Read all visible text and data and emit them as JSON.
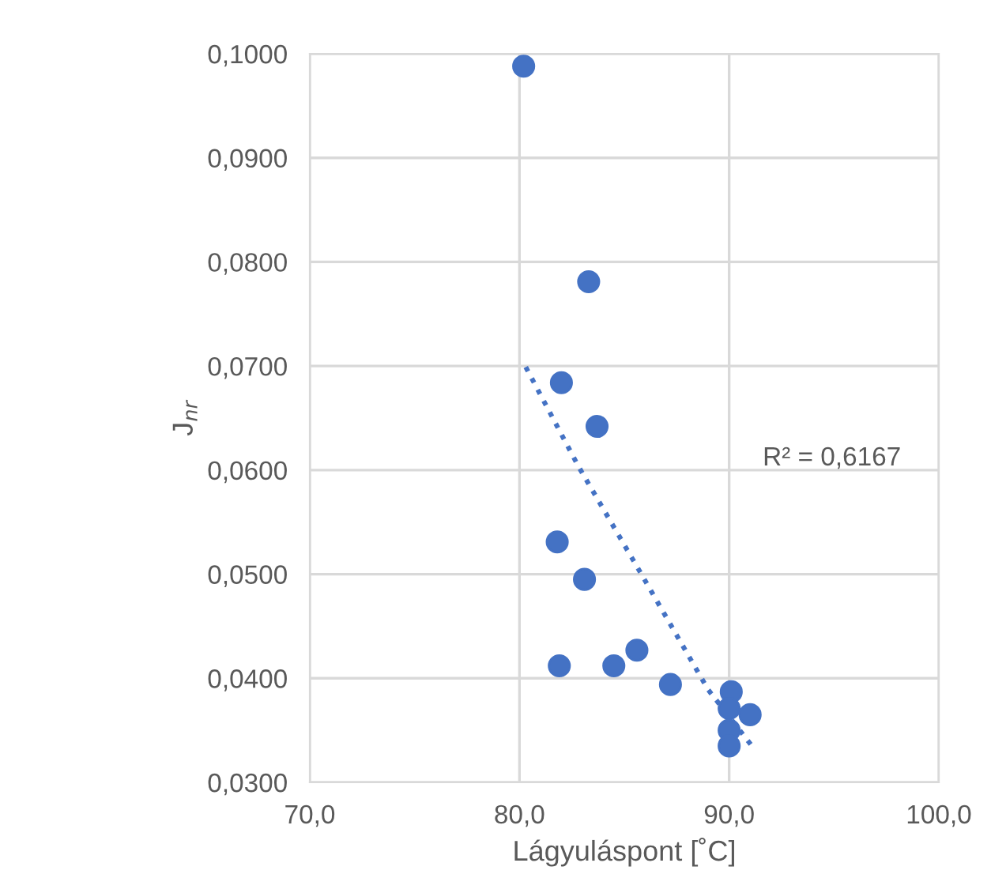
{
  "chart_data": {
    "type": "scatter",
    "xlabel": "Lágyuláspont [˚C]",
    "ylabel": "J$_{nr}$",
    "xlim": [
      70,
      100
    ],
    "xticks": [
      {
        "value": 70,
        "label": "70,0"
      },
      {
        "value": 80,
        "label": "80,0"
      },
      {
        "value": 90,
        "label": "90,0"
      },
      {
        "value": 100,
        "label": "100,0"
      }
    ],
    "ylim": [
      0.03,
      0.1
    ],
    "yticks": [
      {
        "value": 0.03,
        "label": "0,0300"
      },
      {
        "value": 0.04,
        "label": "0,0400"
      },
      {
        "value": 0.05,
        "label": "0,0500"
      },
      {
        "value": 0.06,
        "label": "0,0600"
      },
      {
        "value": 0.07,
        "label": "0,0700"
      },
      {
        "value": 0.08,
        "label": "0,0800"
      },
      {
        "value": 0.09,
        "label": "0,0900"
      },
      {
        "value": 0.1,
        "label": "0,1000"
      }
    ],
    "grid": true,
    "marker": "circle",
    "legend": false,
    "series": [
      {
        "color": "#4472c4",
        "x": [
          80.2,
          83.3,
          82.0,
          83.7,
          81.8,
          83.1,
          81.9,
          84.5,
          85.6,
          87.2,
          90.1,
          90.0,
          91.0,
          90.0,
          90.0
        ],
        "values": [
          0.0988,
          0.0781,
          0.0684,
          0.0642,
          0.0531,
          0.0495,
          0.0412,
          0.0412,
          0.0427,
          0.0394,
          0.0387,
          0.0371,
          0.0365,
          0.035,
          0.0335
        ]
      },
      {
        "type": "line",
        "color": "#4472c4",
        "line_style": "dotted",
        "marker": "none",
        "x": [
          80.3,
          82.8,
          85.9,
          89.0,
          91.2
        ],
        "values": [
          0.0699,
          0.0604,
          0.0497,
          0.0389,
          0.0332
        ]
      }
    ],
    "annotations": [
      "R² = 0,6167"
    ]
  }
}
